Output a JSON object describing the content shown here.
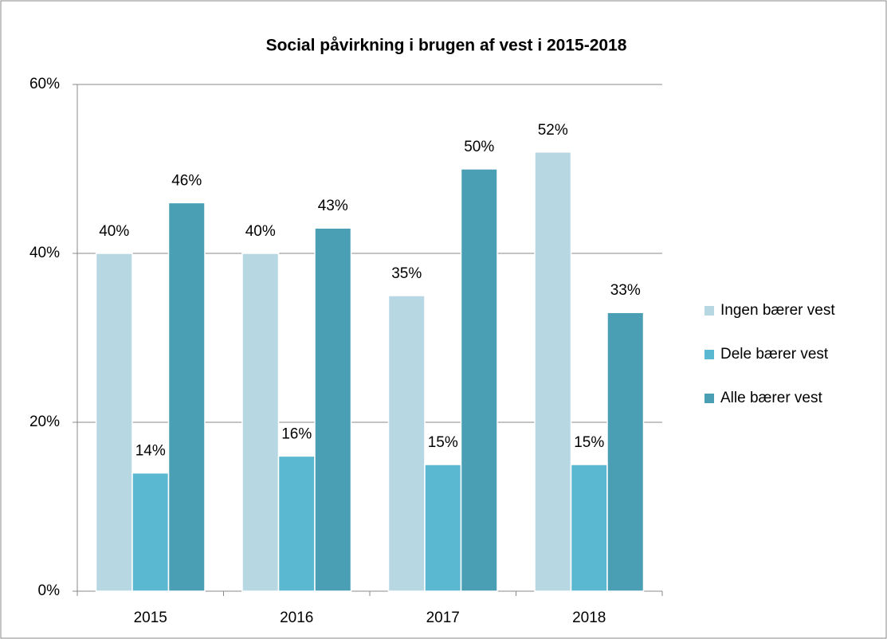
{
  "chart_data": {
    "type": "bar",
    "title": "Social påvirkning i brugen af vest i 2015-2018",
    "categories": [
      "2015",
      "2016",
      "2017",
      "2018"
    ],
    "series": [
      {
        "name": "Ingen bærer vest",
        "color": "#b7d7e3",
        "values": [
          40,
          40,
          35,
          52
        ],
        "value_labels": [
          "40%",
          "40%",
          "35%",
          "52%"
        ]
      },
      {
        "name": "Dele bærer vest",
        "color": "#5bb8d1",
        "values": [
          14,
          16,
          15,
          15
        ],
        "value_labels": [
          "14%",
          "16%",
          "15%",
          "15%"
        ]
      },
      {
        "name": "Alle bærer vest",
        "color": "#4a9fb5",
        "values": [
          46,
          43,
          50,
          33
        ],
        "value_labels": [
          "46%",
          "43%",
          "50%",
          "33%"
        ]
      }
    ],
    "ylim": [
      0,
      60
    ],
    "yticks": [
      {
        "value": 0,
        "label": "0%"
      },
      {
        "value": 20,
        "label": "20%"
      },
      {
        "value": 40,
        "label": "40%"
      },
      {
        "value": 60,
        "label": "60%"
      }
    ],
    "grid": true,
    "legend": "right"
  }
}
